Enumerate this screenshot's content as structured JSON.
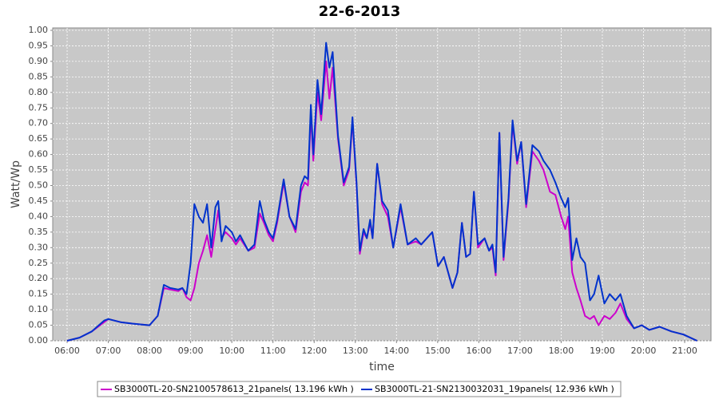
{
  "chart_data": {
    "type": "line",
    "title": "22-6-2013",
    "xlabel": "time",
    "ylabel": "Watt/Wp",
    "grid": true,
    "legend": "bottom",
    "xlim": [
      5.65,
      21.64
    ],
    "ylim": [
      0,
      1.0
    ],
    "xticks": [
      {
        "value": 6,
        "label": "06:00"
      },
      {
        "value": 7,
        "label": "07:00"
      },
      {
        "value": 8,
        "label": "08:00"
      },
      {
        "value": 9,
        "label": "09:00"
      },
      {
        "value": 10,
        "label": "10:00"
      },
      {
        "value": 11,
        "label": "11:00"
      },
      {
        "value": 12,
        "label": "12:00"
      },
      {
        "value": 13,
        "label": "13:00"
      },
      {
        "value": 14,
        "label": "14:00"
      },
      {
        "value": 15,
        "label": "15:00"
      },
      {
        "value": 16,
        "label": "16:00"
      },
      {
        "value": 17,
        "label": "17:00"
      },
      {
        "value": 18,
        "label": "18:00"
      },
      {
        "value": 19,
        "label": "19:00"
      },
      {
        "value": 20,
        "label": "20:00"
      },
      {
        "value": 21,
        "label": "21:00"
      }
    ],
    "yticks": [
      {
        "value": 0,
        "label": "0.00"
      },
      {
        "value": 0.05,
        "label": "0.05"
      },
      {
        "value": 0.1,
        "label": "0.10"
      },
      {
        "value": 0.15,
        "label": "0.15"
      },
      {
        "value": 0.2,
        "label": "0.20"
      },
      {
        "value": 0.25,
        "label": "0.25"
      },
      {
        "value": 0.3,
        "label": "0.30"
      },
      {
        "value": 0.35,
        "label": "0.35"
      },
      {
        "value": 0.4,
        "label": "0.40"
      },
      {
        "value": 0.45,
        "label": "0.45"
      },
      {
        "value": 0.5,
        "label": "0.50"
      },
      {
        "value": 0.55,
        "label": "0.55"
      },
      {
        "value": 0.6,
        "label": "0.60"
      },
      {
        "value": 0.65,
        "label": "0.65"
      },
      {
        "value": 0.7,
        "label": "0.70"
      },
      {
        "value": 0.75,
        "label": "0.75"
      },
      {
        "value": 0.8,
        "label": "0.80"
      },
      {
        "value": 0.85,
        "label": "0.85"
      },
      {
        "value": 0.9,
        "label": "0.90"
      },
      {
        "value": 0.95,
        "label": "0.95"
      },
      {
        "value": 1.0,
        "label": "1.00"
      }
    ],
    "x": [
      6.0,
      6.3,
      6.6,
      6.9,
      7.0,
      7.3,
      7.6,
      8.0,
      8.2,
      8.35,
      8.5,
      8.7,
      8.8,
      8.9,
      9.0,
      9.09,
      9.2,
      9.3,
      9.4,
      9.5,
      9.6,
      9.67,
      9.75,
      9.85,
      10.0,
      10.1,
      10.2,
      10.4,
      10.55,
      10.68,
      10.78,
      10.9,
      11.0,
      11.1,
      11.26,
      11.4,
      11.55,
      11.68,
      11.77,
      11.85,
      11.92,
      11.98,
      12.08,
      12.17,
      12.29,
      12.37,
      12.45,
      12.58,
      12.72,
      12.85,
      12.93,
      13.03,
      13.11,
      13.2,
      13.28,
      13.36,
      13.42,
      13.53,
      13.65,
      13.79,
      13.92,
      14.1,
      14.27,
      14.47,
      14.6,
      14.87,
      15.01,
      15.15,
      15.36,
      15.48,
      15.59,
      15.69,
      15.79,
      15.88,
      15.98,
      16.14,
      16.25,
      16.33,
      16.41,
      16.5,
      16.6,
      16.72,
      16.82,
      16.93,
      17.03,
      17.15,
      17.3,
      17.46,
      17.57,
      17.73,
      17.86,
      18.0,
      18.1,
      18.17,
      18.27,
      18.37,
      18.47,
      18.58,
      18.7,
      18.8,
      18.91,
      19.05,
      19.18,
      19.32,
      19.44,
      19.59,
      19.77,
      19.96,
      20.14,
      20.39,
      20.68,
      20.97,
      21.3
    ],
    "series": [
      {
        "name": "SB3000TL-20-SN2100578613_21panels( 13.196 kWh )",
        "color": "#cc00cc",
        "values": [
          0.0,
          0.01,
          0.03,
          0.06,
          0.07,
          0.06,
          0.055,
          0.05,
          0.08,
          0.17,
          0.165,
          0.16,
          0.17,
          0.14,
          0.13,
          0.17,
          0.25,
          0.29,
          0.34,
          0.27,
          0.36,
          0.42,
          0.33,
          0.35,
          0.33,
          0.31,
          0.33,
          0.29,
          0.3,
          0.41,
          0.38,
          0.34,
          0.32,
          0.38,
          0.51,
          0.4,
          0.35,
          0.48,
          0.51,
          0.5,
          0.73,
          0.58,
          0.8,
          0.71,
          0.9,
          0.78,
          0.88,
          0.65,
          0.5,
          0.55,
          0.71,
          0.5,
          0.28,
          0.35,
          0.33,
          0.38,
          0.33,
          0.57,
          0.44,
          0.4,
          0.3,
          0.43,
          0.31,
          0.32,
          0.31,
          0.35,
          0.24,
          0.27,
          0.17,
          0.22,
          0.38,
          0.27,
          0.28,
          0.48,
          0.3,
          0.33,
          0.29,
          0.3,
          0.21,
          0.67,
          0.26,
          0.45,
          0.7,
          0.57,
          0.64,
          0.43,
          0.61,
          0.58,
          0.55,
          0.48,
          0.47,
          0.4,
          0.36,
          0.4,
          0.22,
          0.17,
          0.13,
          0.08,
          0.07,
          0.08,
          0.05,
          0.08,
          0.07,
          0.09,
          0.12,
          0.07,
          0.04,
          0.05,
          0.035,
          0.045,
          0.03,
          0.02,
          0.0
        ]
      },
      {
        "name": "SB3000TL-21-SN2130032031_19panels( 12.936 kWh )",
        "color": "#0033cc",
        "values": [
          0.0,
          0.01,
          0.03,
          0.065,
          0.07,
          0.06,
          0.055,
          0.05,
          0.08,
          0.18,
          0.17,
          0.165,
          0.17,
          0.15,
          0.25,
          0.44,
          0.4,
          0.38,
          0.44,
          0.3,
          0.43,
          0.45,
          0.32,
          0.37,
          0.35,
          0.32,
          0.34,
          0.29,
          0.31,
          0.45,
          0.39,
          0.35,
          0.33,
          0.39,
          0.52,
          0.4,
          0.36,
          0.5,
          0.53,
          0.52,
          0.76,
          0.6,
          0.84,
          0.73,
          0.96,
          0.88,
          0.93,
          0.66,
          0.51,
          0.56,
          0.72,
          0.51,
          0.29,
          0.36,
          0.33,
          0.39,
          0.33,
          0.57,
          0.45,
          0.42,
          0.3,
          0.44,
          0.31,
          0.33,
          0.31,
          0.35,
          0.24,
          0.27,
          0.17,
          0.22,
          0.38,
          0.27,
          0.28,
          0.48,
          0.31,
          0.33,
          0.29,
          0.31,
          0.22,
          0.67,
          0.27,
          0.46,
          0.71,
          0.58,
          0.64,
          0.44,
          0.63,
          0.61,
          0.58,
          0.55,
          0.51,
          0.46,
          0.43,
          0.46,
          0.26,
          0.33,
          0.27,
          0.25,
          0.13,
          0.15,
          0.21,
          0.12,
          0.15,
          0.13,
          0.15,
          0.08,
          0.04,
          0.05,
          0.035,
          0.045,
          0.03,
          0.02,
          0.0
        ]
      }
    ]
  }
}
